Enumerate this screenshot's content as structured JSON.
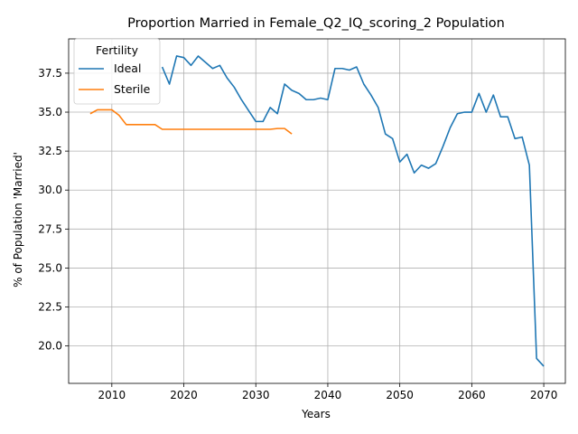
{
  "chart_data": {
    "type": "line",
    "title": "Proportion Married in Female_Q2_IQ_scoring_2 Population",
    "xlabel": "Years",
    "ylabel": "% of Population 'Married'",
    "xlim": [
      2004,
      2073
    ],
    "ylim": [
      17.6,
      39.7
    ],
    "xticks": [
      2010,
      2020,
      2030,
      2040,
      2050,
      2060,
      2070
    ],
    "yticks": [
      20.0,
      22.5,
      25.0,
      27.5,
      30.0,
      32.5,
      35.0,
      37.5
    ],
    "ytick_labels": [
      "20.0",
      "22.5",
      "25.0",
      "27.5",
      "30.0",
      "32.5",
      "35.0",
      "37.5"
    ],
    "grid": true,
    "legend": {
      "title": "Fertility",
      "placement": "top-left"
    },
    "series": [
      {
        "name": "Ideal",
        "color": "#1f77b4",
        "x": [
          2017,
          2018,
          2019,
          2020,
          2021,
          2022,
          2023,
          2024,
          2025,
          2026,
          2027,
          2028,
          2029,
          2030,
          2031,
          2032,
          2033,
          2034,
          2035,
          2036,
          2037,
          2038,
          2039,
          2040,
          2041,
          2042,
          2043,
          2044,
          2045,
          2046,
          2047,
          2048,
          2049,
          2050,
          2051,
          2052,
          2053,
          2054,
          2055,
          2056,
          2057,
          2058,
          2059,
          2060,
          2061,
          2062,
          2063,
          2064,
          2065,
          2066,
          2067,
          2068,
          2069,
          2070
        ],
        "y": [
          37.9,
          36.8,
          38.6,
          38.5,
          38.0,
          38.6,
          38.2,
          37.8,
          38.0,
          37.2,
          36.6,
          35.8,
          35.1,
          34.4,
          34.4,
          35.3,
          34.9,
          36.8,
          36.4,
          36.2,
          35.8,
          35.8,
          35.9,
          35.8,
          37.8,
          37.8,
          37.7,
          37.9,
          36.8,
          36.1,
          35.3,
          33.6,
          33.3,
          31.8,
          32.3,
          31.1,
          31.6,
          31.4,
          31.7,
          32.8,
          34.0,
          34.9,
          35.0,
          35.0,
          36.2,
          35.0,
          36.1,
          34.7,
          34.7,
          33.3,
          33.4,
          31.6,
          19.2,
          18.7
        ]
      },
      {
        "name": "Sterile",
        "color": "#ff7f0e",
        "x": [
          2007,
          2008,
          2009,
          2010,
          2011,
          2012,
          2013,
          2014,
          2015,
          2016,
          2017,
          2018,
          2019,
          2020,
          2021,
          2022,
          2023,
          2024,
          2025,
          2026,
          2027,
          2028,
          2029,
          2030,
          2031,
          2032,
          2033,
          2034,
          2035
        ],
        "y": [
          34.9,
          35.15,
          35.15,
          35.15,
          34.8,
          34.2,
          34.2,
          34.2,
          34.2,
          34.2,
          33.9,
          33.9,
          33.9,
          33.9,
          33.9,
          33.9,
          33.9,
          33.9,
          33.9,
          33.9,
          33.9,
          33.9,
          33.9,
          33.9,
          33.9,
          33.9,
          33.95,
          33.95,
          33.6
        ]
      }
    ]
  }
}
